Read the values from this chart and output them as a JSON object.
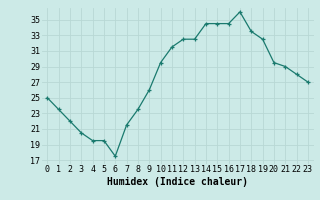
{
  "x": [
    0,
    1,
    2,
    3,
    4,
    5,
    6,
    7,
    8,
    9,
    10,
    11,
    12,
    13,
    14,
    15,
    16,
    17,
    18,
    19,
    20,
    21,
    22,
    23
  ],
  "y": [
    25,
    23.5,
    22,
    20.5,
    19.5,
    19.5,
    17.5,
    21.5,
    23.5,
    26,
    29.5,
    31.5,
    32.5,
    32.5,
    34.5,
    34.5,
    34.5,
    36,
    33.5,
    32.5,
    29.5,
    29,
    28,
    27
  ],
  "xlabel": "Humidex (Indice chaleur)",
  "ylabel": "",
  "yticks": [
    17,
    19,
    21,
    23,
    25,
    27,
    29,
    31,
    33,
    35
  ],
  "xticks": [
    0,
    1,
    2,
    3,
    4,
    5,
    6,
    7,
    8,
    9,
    10,
    11,
    12,
    13,
    14,
    15,
    16,
    17,
    18,
    19,
    20,
    21,
    22,
    23
  ],
  "ylim": [
    16.5,
    36.5
  ],
  "xlim": [
    -0.5,
    23.5
  ],
  "line_color": "#1a7a6e",
  "bg_color": "#cceae7",
  "grid_color_major": "#b8d8d4",
  "grid_color_minor": "#ddf0ee",
  "label_fontsize": 7,
  "tick_fontsize": 6
}
